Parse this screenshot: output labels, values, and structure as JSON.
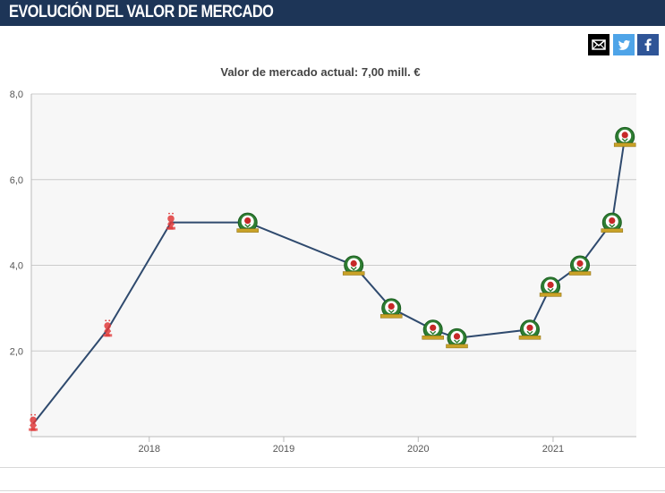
{
  "header": {
    "title": "EVOLUCIÓN DEL VALOR DE MERCADO"
  },
  "share": {
    "email_icon": "email-icon",
    "twitter_icon": "twitter-icon",
    "facebook_icon": "facebook-icon"
  },
  "colors": {
    "header_bg": "#1d3557",
    "line": "#2f4a6e",
    "plot_bg": "#f7f7f7",
    "grid": "#cccccc",
    "club_old": "#e03a3a",
    "club_new": "#2e7d32"
  },
  "chart_data": {
    "type": "line",
    "title": "Valor de mercado actual: 7,00 mill. €",
    "xlabel": "",
    "ylabel": "",
    "ylim": [
      0,
      8
    ],
    "xlim": [
      "2017-02-15",
      "2021-08-15"
    ],
    "y_ticks": [
      "2,0",
      "4,0",
      "6,0",
      "8,0"
    ],
    "x_ticks": [
      "2018",
      "2019",
      "2020",
      "2021"
    ],
    "grid": true,
    "series": [
      {
        "values": [
          {
            "x": "2017-02-20",
            "y": 0.3,
            "club": "old"
          },
          {
            "x": "2017-09-10",
            "y": 2.5,
            "club": "old"
          },
          {
            "x": "2018-03-01",
            "y": 5.0,
            "club": "old"
          },
          {
            "x": "2018-09-25",
            "y": 5.0,
            "club": "new"
          },
          {
            "x": "2019-07-10",
            "y": 4.0,
            "club": "new"
          },
          {
            "x": "2019-10-20",
            "y": 3.0,
            "club": "new"
          },
          {
            "x": "2020-02-10",
            "y": 2.5,
            "club": "new"
          },
          {
            "x": "2020-04-15",
            "y": 2.3,
            "club": "new"
          },
          {
            "x": "2020-10-30",
            "y": 2.5,
            "club": "new"
          },
          {
            "x": "2020-12-25",
            "y": 3.5,
            "club": "new"
          },
          {
            "x": "2021-03-15",
            "y": 4.0,
            "club": "new"
          },
          {
            "x": "2021-06-10",
            "y": 5.0,
            "club": "new"
          },
          {
            "x": "2021-07-15",
            "y": 7.0,
            "club": "new"
          }
        ]
      }
    ]
  }
}
